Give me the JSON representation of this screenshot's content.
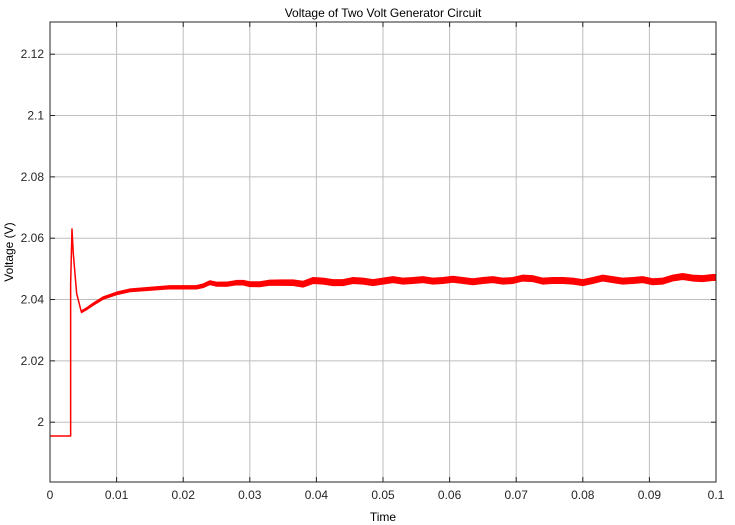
{
  "chart_data": {
    "type": "line",
    "title": "Voltage of Two Volt Generator Circuit",
    "xlabel": "Time",
    "ylabel": "Voltage (V)",
    "xlim": [
      0,
      0.1
    ],
    "ylim": [
      1.9805,
      2.1305
    ],
    "xticks": [
      0,
      0.01,
      0.02,
      0.03,
      0.04,
      0.05,
      0.06,
      0.07,
      0.08,
      0.09,
      0.1
    ],
    "xtick_labels": [
      "0",
      "0.01",
      "0.02",
      "0.03",
      "0.04",
      "0.05",
      "0.06",
      "0.07",
      "0.08",
      "0.09",
      "0.1"
    ],
    "yticks": [
      2,
      2.02,
      2.04,
      2.06,
      2.08,
      2.1,
      2.12
    ],
    "ytick_labels": [
      "2",
      "2.02",
      "2.04",
      "2.06",
      "2.08",
      "2.1",
      "2.12"
    ],
    "grid": true,
    "legend": false,
    "series": [
      {
        "color": "#ff0000",
        "x": [
          0,
          0.0031,
          0.0031,
          0.0033,
          0.0035,
          0.004,
          0.0047,
          0.0055,
          0.0065,
          0.008,
          0.01,
          0.012,
          0.015,
          0.018,
          0.02,
          0.022,
          0.023,
          0.024,
          0.025,
          0.0265,
          0.028,
          0.029,
          0.03,
          0.0315,
          0.033,
          0.034,
          0.035,
          0.0365,
          0.038,
          0.0395,
          0.041,
          0.0425,
          0.044,
          0.0455,
          0.047,
          0.0485,
          0.05,
          0.0515,
          0.053,
          0.0545,
          0.056,
          0.0575,
          0.059,
          0.0605,
          0.062,
          0.0635,
          0.065,
          0.0665,
          0.068,
          0.0695,
          0.071,
          0.0725,
          0.074,
          0.0755,
          0.077,
          0.0785,
          0.08,
          0.0815,
          0.083,
          0.0845,
          0.086,
          0.0875,
          0.089,
          0.0905,
          0.092,
          0.0935,
          0.095,
          0.0965,
          0.098,
          0.0995,
          0.1
        ],
        "y": [
          1.9955,
          1.9955,
          2.045,
          2.063,
          2.055,
          2.042,
          2.036,
          2.037,
          2.0385,
          2.0405,
          2.042,
          2.043,
          2.0435,
          2.044,
          2.044,
          2.044,
          2.0445,
          2.0455,
          2.045,
          2.045,
          2.0455,
          2.0455,
          2.045,
          2.045,
          2.0455,
          2.0455,
          2.0455,
          2.0455,
          2.045,
          2.0462,
          2.046,
          2.0455,
          2.0455,
          2.0462,
          2.046,
          2.0455,
          2.046,
          2.0465,
          2.046,
          2.0462,
          2.0465,
          2.046,
          2.0462,
          2.0466,
          2.0462,
          2.0458,
          2.0462,
          2.0465,
          2.046,
          2.0462,
          2.047,
          2.0468,
          2.046,
          2.0462,
          2.0462,
          2.046,
          2.0455,
          2.0462,
          2.047,
          2.0465,
          2.046,
          2.0462,
          2.0465,
          2.0458,
          2.046,
          2.047,
          2.0475,
          2.047,
          2.0468,
          2.0472,
          2.0472
        ]
      }
    ]
  }
}
